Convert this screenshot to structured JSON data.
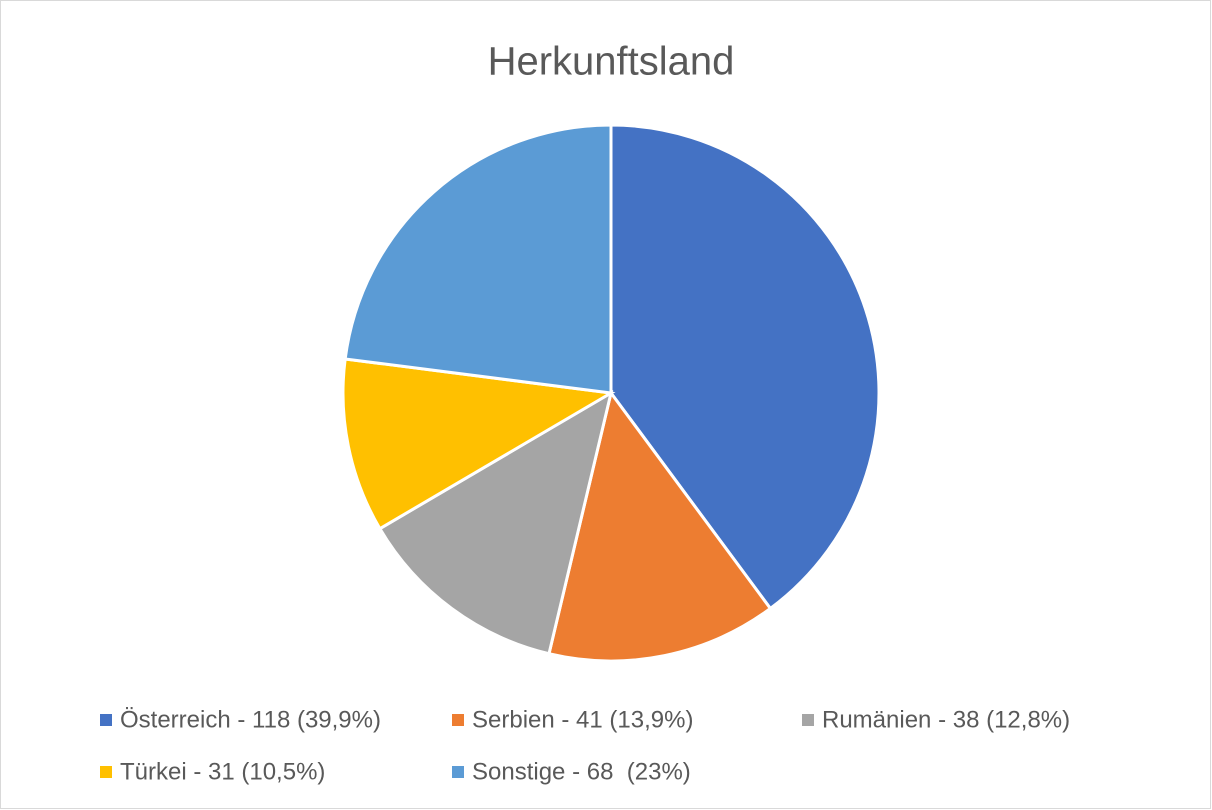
{
  "chart_data": {
    "type": "pie",
    "title": "Herkunftsland",
    "categories": [
      "Österreich - 118 (39,9%)",
      "Serbien - 41 (13,9%)",
      "Rumänien - 38 (12,8%)",
      "Türkei - 31 (10,5%)",
      "Sonstige - 68  (23%)"
    ],
    "values": [
      118,
      41,
      38,
      31,
      68
    ],
    "colors": [
      "#4472c4",
      "#ed7d31",
      "#a5a5a5",
      "#ffc000",
      "#5b9bd5"
    ],
    "legend": "bottom"
  }
}
